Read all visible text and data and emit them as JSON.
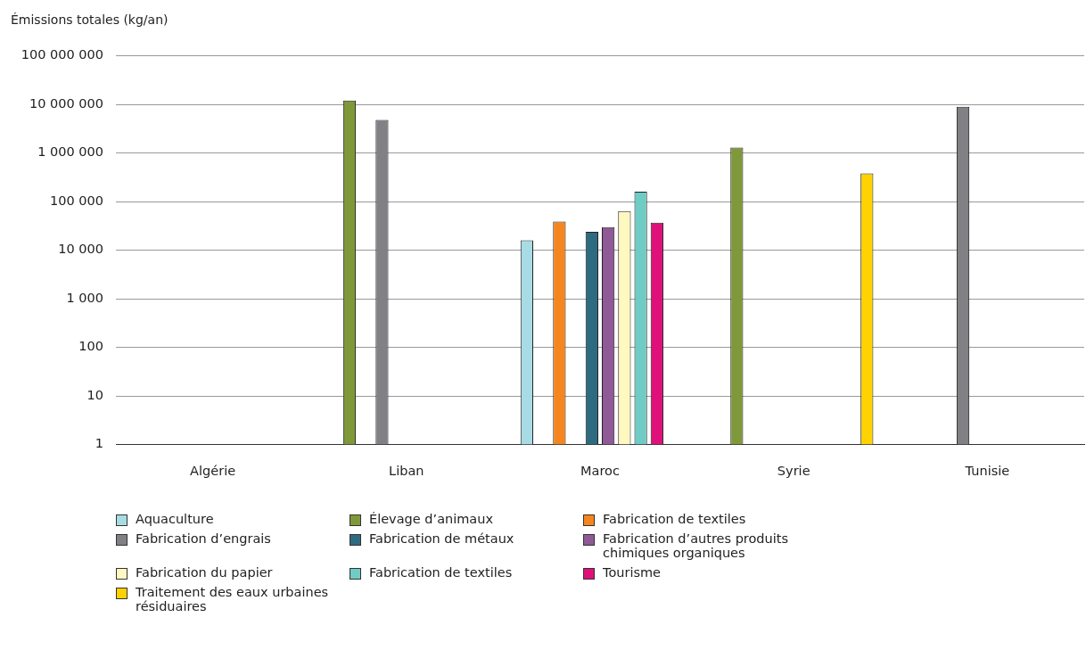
{
  "chart_data": {
    "type": "bar",
    "ylabel": "Émissions totales (kg/an)",
    "categories": [
      "Algérie",
      "Liban",
      "Maroc",
      "Syrie",
      "Tunisie"
    ],
    "series": [
      {
        "name": "Aquaculture",
        "color": "#a8dce4",
        "values": [
          null,
          null,
          16000,
          null,
          null
        ]
      },
      {
        "name": "Élevage d’animaux",
        "color": "#7f993a",
        "values": [
          null,
          12000000,
          null,
          1300000,
          null
        ]
      },
      {
        "name": "Fabrication de textiles",
        "color": "#f5861f",
        "values": [
          null,
          null,
          39000,
          null,
          null
        ]
      },
      {
        "name": "Fabrication d’engrais",
        "color": "#808085",
        "values": [
          null,
          4800000,
          null,
          null,
          9000000
        ]
      },
      {
        "name": "Fabrication de métaux",
        "color": "#2f6b80",
        "values": [
          null,
          null,
          24000,
          null,
          null
        ]
      },
      {
        "name": "Fabrication d’autres produits chimiques organiques",
        "color": "#8f5a96",
        "values": [
          null,
          null,
          30000,
          null,
          null
        ]
      },
      {
        "name": "Fabrication du papier",
        "color": "#fff8c0",
        "values": [
          null,
          null,
          64000,
          null,
          null
        ]
      },
      {
        "name": "Fabrication de textiles",
        "color": "#6fccc4",
        "values": [
          null,
          null,
          160000,
          null,
          null
        ]
      },
      {
        "name": "Tourisme",
        "color": "#e0107a",
        "values": [
          null,
          null,
          37000,
          null,
          null
        ]
      },
      {
        "name": "Traitement des eaux urbaines résiduaires",
        "color": "#ffd200",
        "values": [
          null,
          null,
          null,
          380000,
          null
        ]
      }
    ],
    "log": true,
    "ylim": [
      1,
      100000000
    ],
    "yticks": [
      {
        "value": 1,
        "label": "1"
      },
      {
        "value": 10,
        "label": "10"
      },
      {
        "value": 100,
        "label": "100"
      },
      {
        "value": 1000,
        "label": "1 000"
      },
      {
        "value": 10000,
        "label": "10 000"
      },
      {
        "value": 100000,
        "label": "100 000"
      },
      {
        "value": 1000000,
        "label": "1 000 000"
      },
      {
        "value": 10000000,
        "label": "10 000 000"
      },
      {
        "value": 100000000,
        "label": "100 000 000"
      }
    ],
    "grid": "y",
    "legend": "bottom"
  }
}
